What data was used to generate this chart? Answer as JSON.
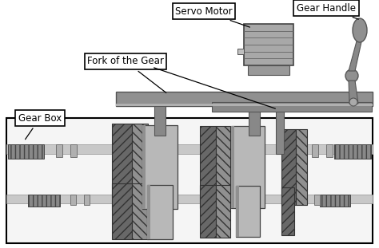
{
  "labels": {
    "servo_motor": "Servo Motor",
    "gear_handle": "Gear Handle",
    "fork_of_gear": "Fork of the Gear",
    "gear_box": "Gear Box"
  },
  "colors": {
    "background": "#ffffff",
    "box_border": "#000000",
    "gearbox_bg": "#f5f5f5",
    "shaft_light": "#cccccc",
    "shaft_mid": "#aaaaaa",
    "shaft_dark": "#888888",
    "gear_body": "#b0b0b0",
    "gear_dark": "#606060",
    "gear_hatch": "#505050",
    "fork_color": "#909090",
    "servo_body": "#a0a0a0",
    "handle_gray": "#808080",
    "label_bg": "#ffffff",
    "spline_color": "#707070"
  },
  "figsize": [
    4.74,
    3.11
  ],
  "dpi": 100
}
